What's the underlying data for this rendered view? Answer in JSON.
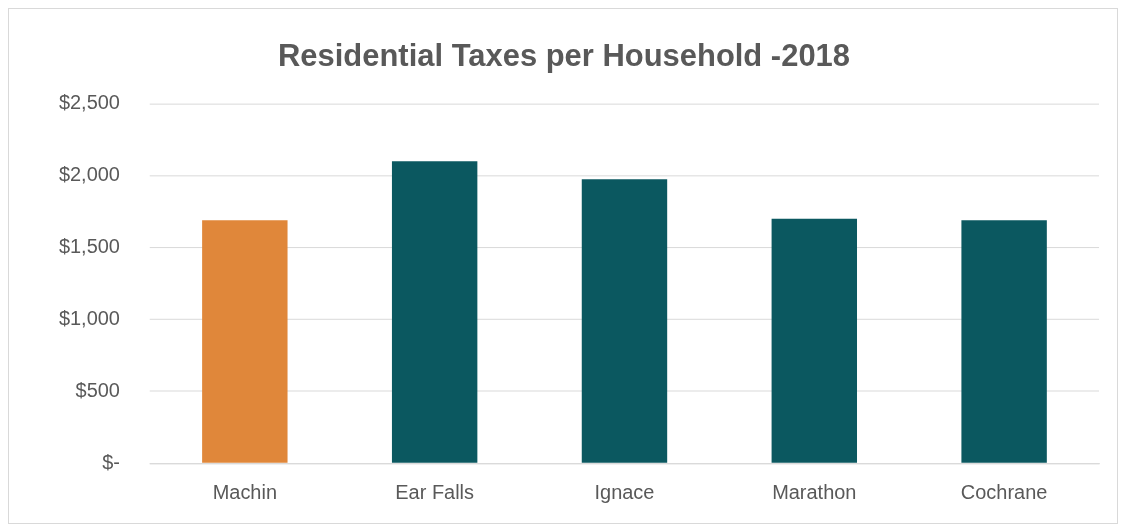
{
  "chart_data": {
    "type": "bar",
    "title": "Residential Taxes per Household -2018",
    "categories": [
      "Machin",
      "Ear Falls",
      "Ignace",
      "Marathon",
      "Cochrane"
    ],
    "values": [
      1690,
      2100,
      1975,
      1700,
      1690
    ],
    "colors": [
      "#e0873a",
      "#0b5860",
      "#0b5860",
      "#0b5860",
      "#0b5860"
    ],
    "ylim": [
      0,
      2500
    ],
    "yticks": [
      {
        "value": 0,
        "label": "$-"
      },
      {
        "value": 500,
        "label": "$500"
      },
      {
        "value": 1000,
        "label": "$1,000"
      },
      {
        "value": 1500,
        "label": "$1,500"
      },
      {
        "value": 2000,
        "label": "$2,000"
      },
      {
        "value": 2500,
        "label": "$2,500"
      }
    ],
    "grid": "y",
    "legend": false
  }
}
